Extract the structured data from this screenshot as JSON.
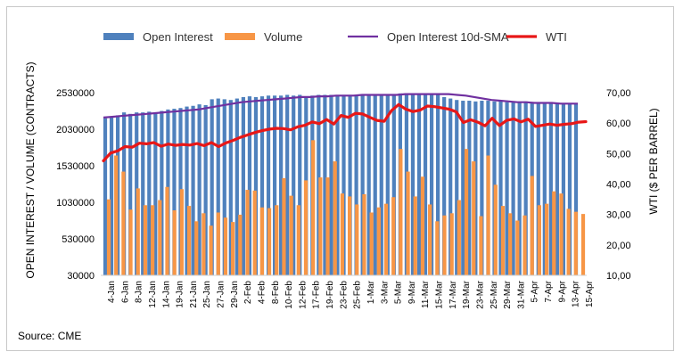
{
  "chart_data": {
    "type": "bar-line-combo",
    "legend": [
      {
        "name": "Open Interest",
        "kind": "bar",
        "color": "#4F81BD"
      },
      {
        "name": "Volume",
        "kind": "bar",
        "color": "#F79646"
      },
      {
        "name": "Open Interest 10d-SMA",
        "kind": "line",
        "color": "#7030A0"
      },
      {
        "name": "WTI",
        "kind": "line",
        "color": "#E81717"
      }
    ],
    "legend_position": "top",
    "ylabel": "OPEN INTEREST / VOLUME (CONTRACTS)",
    "y2label": "WTI ($ PER BARREL)",
    "ylim": [
      30000,
      2530000
    ],
    "y_ticks": [
      "30000",
      "530000",
      "1030000",
      "1530000",
      "2030000",
      "2530000"
    ],
    "y_tick_values": [
      30000,
      530000,
      1030000,
      1530000,
      2030000,
      2530000
    ],
    "y2lim": [
      10,
      70
    ],
    "y2_ticks": [
      "10,00",
      "20,00",
      "30,00",
      "40,00",
      "50,00",
      "60,00",
      "70,00"
    ],
    "y2_tick_values": [
      10,
      20,
      30,
      40,
      50,
      60,
      70
    ],
    "x_labels": [
      "4-Jan",
      "6-Jan",
      "8-Jan",
      "12-Jan",
      "14-Jan",
      "19-Jan",
      "21-Jan",
      "25-Jan",
      "27-Jan",
      "29-Jan",
      "2-Feb",
      "4-Feb",
      "8-Feb",
      "10-Feb",
      "12-Feb",
      "17-Feb",
      "19-Feb",
      "23-Feb",
      "25-Feb",
      "1-Mar",
      "3-Mar",
      "5-Mar",
      "9-Mar",
      "11-Mar",
      "15-Mar",
      "17-Mar",
      "19-Mar",
      "23-Mar",
      "25-Mar",
      "29-Mar",
      "31-Mar",
      "5-Apr",
      "7-Apr",
      "9-Apr",
      "13-Apr",
      "15-Apr"
    ],
    "open_interest": [
      2180000,
      2200000,
      2220000,
      2260000,
      2240000,
      2260000,
      2260000,
      2270000,
      2260000,
      2280000,
      2300000,
      2310000,
      2320000,
      2340000,
      2350000,
      2370000,
      2360000,
      2440000,
      2450000,
      2440000,
      2430000,
      2450000,
      2470000,
      2480000,
      2470000,
      2480000,
      2490000,
      2490000,
      2490000,
      2500000,
      2490000,
      2500000,
      2480000,
      2490000,
      2500000,
      2500000,
      2500000,
      2490000,
      2500000,
      2500000,
      2490000,
      2500000,
      2500000,
      2500000,
      2510000,
      2510000,
      2510000,
      2520000,
      2520000,
      2520000,
      2520000,
      2510000,
      2510000,
      2500000,
      2470000,
      2450000,
      2430000,
      2420000,
      2420000,
      2410000,
      2420000,
      2420000,
      2410000,
      2410000,
      2400000,
      2400000,
      2400000,
      2410000,
      2400000,
      2400000,
      2400000,
      2400000,
      2390000,
      2380000,
      2380000,
      2380000
    ],
    "volume": [
      1070000,
      1670000,
      1450000,
      930000,
      1220000,
      990000,
      990000,
      1060000,
      1240000,
      920000,
      1210000,
      980000,
      770000,
      880000,
      710000,
      890000,
      820000,
      760000,
      860000,
      1200000,
      1190000,
      960000,
      950000,
      990000,
      1360000,
      1120000,
      990000,
      1330000,
      1880000,
      1370000,
      1370000,
      1590000,
      1150000,
      1110000,
      1000000,
      1140000,
      890000,
      960000,
      1010000,
      1100000,
      1760000,
      1450000,
      1110000,
      1380000,
      1000000,
      770000,
      850000,
      880000,
      1060000,
      1760000,
      1590000,
      840000,
      1670000,
      1270000,
      980000,
      880000,
      780000,
      850000,
      1390000,
      990000,
      1010000,
      1180000,
      1150000,
      940000,
      900000,
      870000
    ],
    "oi_sma": [
      2190000,
      2200000,
      2210000,
      2220000,
      2230000,
      2240000,
      2250000,
      2260000,
      2270000,
      2280000,
      2290000,
      2300000,
      2320000,
      2340000,
      2360000,
      2380000,
      2400000,
      2410000,
      2420000,
      2430000,
      2440000,
      2450000,
      2460000,
      2470000,
      2470000,
      2480000,
      2480000,
      2490000,
      2490000,
      2490000,
      2500000,
      2500000,
      2500000,
      2500000,
      2500000,
      2510000,
      2510000,
      2510000,
      2510000,
      2510000,
      2510000,
      2500000,
      2490000,
      2470000,
      2450000,
      2430000,
      2420000,
      2410000,
      2400000,
      2400000,
      2390000,
      2390000,
      2390000,
      2380000,
      2380000,
      2380000
    ],
    "wti": [
      47.6,
      50.2,
      50.9,
      52.3,
      52.1,
      53.4,
      53.2,
      53.6,
      52.4,
      53.1,
      52.7,
      53.0,
      52.8,
      53.3,
      52.6,
      53.6,
      52.3,
      53.5,
      54.3,
      55.3,
      56.1,
      56.9,
      57.5,
      58.0,
      58.3,
      58.2,
      57.8,
      58.8,
      59.3,
      60.4,
      59.8,
      61.2,
      59.7,
      62.5,
      61.9,
      63.2,
      63.0,
      61.9,
      60.9,
      60.6,
      64.1,
      66.1,
      64.6,
      63.8,
      64.3,
      65.6,
      65.4,
      65.0,
      64.6,
      63.7,
      60.2,
      61.1,
      60.3,
      59.1,
      61.6,
      59.2,
      60.9,
      61.4,
      60.4,
      61.3,
      58.9,
      59.3,
      59.7,
      59.3,
      59.6,
      59.8,
      60.3,
      60.5
    ],
    "title": "",
    "source": "Source: CME"
  }
}
